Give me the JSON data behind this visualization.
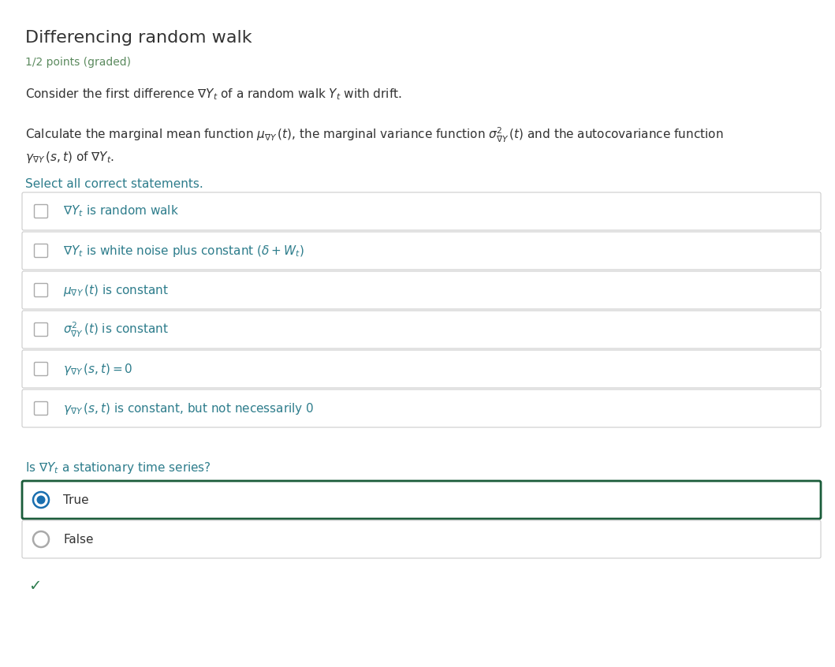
{
  "title": "Differencing random walk",
  "subtitle": "1/2 points (graded)",
  "bg_color": "#ffffff",
  "title_color": "#333333",
  "subtitle_color": "#5b8a5e",
  "body_text_color": "#333333",
  "teal_color": "#2e7d8c",
  "orange_color": "#c47a1e",
  "box_border_color": "#cccccc",
  "selected_border_color": "#1a5c3a",
  "radio_fill_color": "#1a6faf",
  "checkmark_color": "#2e7d4f",
  "select_text": "Select all correct statements.",
  "checkboxes": [
    "$\\nabla Y_t$ is random walk",
    "$\\nabla Y_t$ is white noise plus constant $(\\delta + W_t)$",
    "$\\mu_{\\nabla Y}\\,(t)$ is constant",
    "$\\sigma^2_{\\nabla Y}\\,(t)$ is constant",
    "$\\gamma_{\\nabla Y}\\,(s,t) = 0$",
    "$\\gamma_{\\nabla Y}\\,(s,t)$ is constant, but not necessarily 0"
  ],
  "stationary_question": "Is $\\nabla Y_t$ a stationary time series?",
  "radio_options": [
    "True",
    "False"
  ],
  "selected_radio": 0,
  "show_checkmark": true,
  "figsize": [
    10.59,
    8.46
  ],
  "dpi": 100
}
